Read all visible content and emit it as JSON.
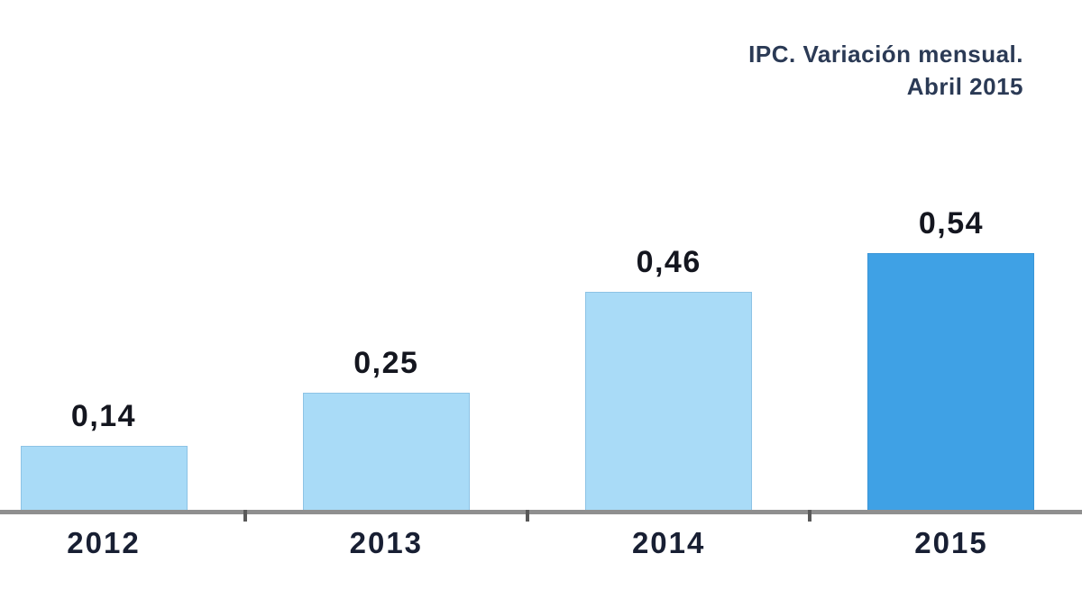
{
  "chart_data": {
    "type": "bar",
    "title": "IPC. Variación mensual. Abril 2015",
    "title_lines": [
      "IPC. Variación mensual.",
      "Abril 2015"
    ],
    "categories": [
      "2012",
      "2013",
      "2014",
      "2015"
    ],
    "values": [
      0.14,
      0.25,
      0.46,
      0.54
    ],
    "value_labels": [
      "0,14",
      "0,25",
      "0,46",
      "0,54"
    ],
    "xlabel": "",
    "ylabel": "",
    "ylim": [
      0,
      0.6
    ],
    "grid": false,
    "legend": false,
    "highlight_index": 3,
    "bar_colors": [
      "#a9dbf7",
      "#a9dbf7",
      "#a9dbf7",
      "#3fa1e5"
    ],
    "colors": {
      "bar_light": "#a9dbf7",
      "bar_dark": "#3fa1e5",
      "axis": "#8f8f8f",
      "tick": "#595959",
      "title_text": "#2b3a55",
      "label_text": "#14161f",
      "background": "#ffffff"
    }
  }
}
